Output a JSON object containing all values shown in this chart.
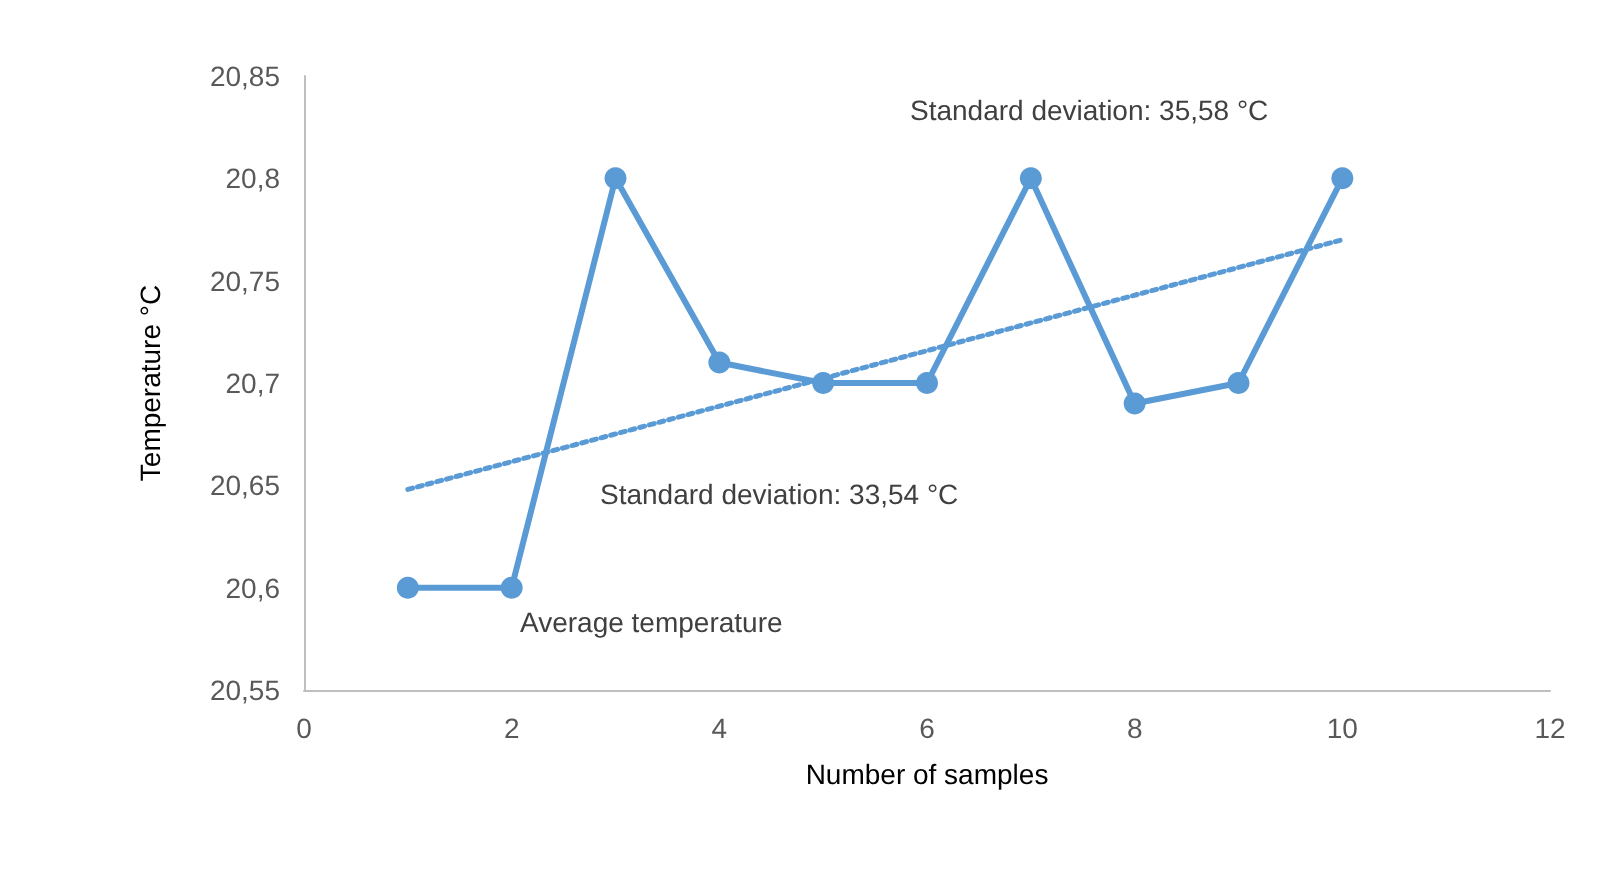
{
  "chart_data": {
    "type": "line",
    "xlabel": "Number of samples",
    "ylabel": "Temperature °C",
    "x": [
      1,
      2,
      3,
      4,
      5,
      6,
      7,
      8,
      9,
      10
    ],
    "series": [
      {
        "color": "#5b9bd5",
        "values": [
          20.6,
          20.6,
          20.8,
          20.71,
          20.7,
          20.7,
          20.8,
          20.69,
          20.7,
          20.8
        ],
        "marker": "circle",
        "line_style": "solid"
      },
      {
        "color": "#5b9bd5",
        "x": [
          1,
          10
        ],
        "values": [
          20.648,
          20.77
        ],
        "marker": "none",
        "line_style": "dotted"
      }
    ],
    "xlim": [
      0,
      12
    ],
    "xticks": [
      0,
      2,
      4,
      6,
      8,
      10,
      12
    ],
    "ylim": [
      20.55,
      20.85
    ],
    "yticks": [
      {
        "value": 20.55,
        "label": "20,55"
      },
      {
        "value": 20.6,
        "label": "20,6"
      },
      {
        "value": 20.65,
        "label": "20,65"
      },
      {
        "value": 20.7,
        "label": "20,7"
      },
      {
        "value": 20.75,
        "label": "20,75"
      },
      {
        "value": 20.8,
        "label": "20,8"
      },
      {
        "value": 20.85,
        "label": "20,85"
      }
    ],
    "grid": false,
    "annotations": [
      "Standard deviation: 35,58 °C",
      "Standard deviation: 33,54 °C",
      "Average temperature"
    ]
  }
}
